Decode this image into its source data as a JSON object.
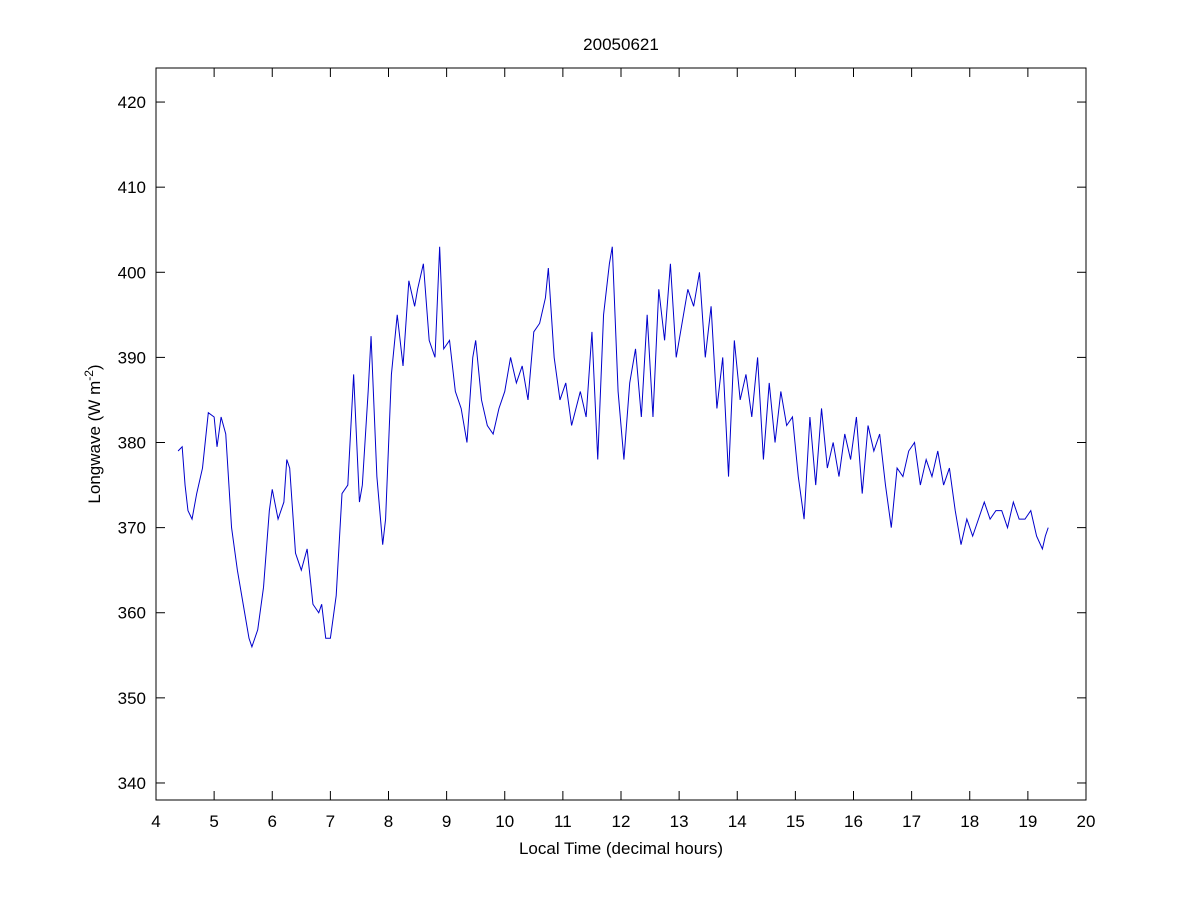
{
  "chart_data": {
    "type": "line",
    "title": "20050621",
    "xlabel": "Local Time (decimal hours)",
    "ylabel": {
      "text": "Longwave (W m",
      "superscript": "-2",
      "suffix": ")"
    },
    "xlim": [
      4,
      20
    ],
    "xticks": [
      4,
      5,
      6,
      7,
      8,
      9,
      10,
      11,
      12,
      13,
      14,
      15,
      16,
      17,
      18,
      19,
      20
    ],
    "ylim": [
      338,
      424
    ],
    "yticks": [
      340,
      350,
      360,
      370,
      380,
      390,
      400,
      410,
      420
    ],
    "grid": false,
    "series": [
      {
        "color": "#0000cc",
        "x": [
          4.38,
          4.45,
          4.5,
          4.55,
          4.62,
          4.7,
          4.8,
          4.9,
          5.0,
          5.05,
          5.12,
          5.2,
          5.3,
          5.4,
          5.5,
          5.6,
          5.65,
          5.75,
          5.85,
          5.95,
          6.0,
          6.1,
          6.2,
          6.25,
          6.3,
          6.4,
          6.5,
          6.6,
          6.7,
          6.8,
          6.85,
          6.92,
          7.0,
          7.1,
          7.2,
          7.3,
          7.4,
          7.5,
          7.55,
          7.65,
          7.7,
          7.8,
          7.9,
          7.95,
          8.05,
          8.15,
          8.25,
          8.35,
          8.45,
          8.5,
          8.6,
          8.7,
          8.8,
          8.88,
          8.95,
          9.05,
          9.15,
          9.25,
          9.35,
          9.45,
          9.5,
          9.6,
          9.7,
          9.8,
          9.9,
          10.0,
          10.1,
          10.2,
          10.3,
          10.4,
          10.5,
          10.6,
          10.7,
          10.75,
          10.85,
          10.95,
          11.05,
          11.15,
          11.3,
          11.4,
          11.5,
          11.6,
          11.7,
          11.8,
          11.85,
          11.95,
          12.05,
          12.15,
          12.25,
          12.35,
          12.45,
          12.55,
          12.65,
          12.75,
          12.85,
          12.95,
          13.05,
          13.15,
          13.25,
          13.35,
          13.45,
          13.55,
          13.65,
          13.75,
          13.85,
          13.95,
          14.05,
          14.15,
          14.25,
          14.35,
          14.45,
          14.55,
          14.65,
          14.75,
          14.85,
          14.95,
          15.05,
          15.15,
          15.25,
          15.35,
          15.45,
          15.55,
          15.65,
          15.75,
          15.85,
          15.95,
          16.05,
          16.15,
          16.25,
          16.35,
          16.45,
          16.55,
          16.65,
          16.75,
          16.85,
          16.95,
          17.05,
          17.15,
          17.25,
          17.35,
          17.45,
          17.55,
          17.65,
          17.75,
          17.85,
          17.95,
          18.05,
          18.15,
          18.25,
          18.35,
          18.45,
          18.55,
          18.65,
          18.75,
          18.85,
          18.95,
          19.05,
          19.15,
          19.25,
          19.3,
          19.35
        ],
        "values": [
          379,
          379.5,
          375,
          372,
          371,
          374,
          377,
          383.5,
          383,
          379.5,
          383,
          381,
          370,
          365,
          361,
          357,
          356,
          358,
          363,
          372,
          374.5,
          371,
          373,
          378,
          377,
          367,
          365,
          367.5,
          361,
          360,
          361,
          357,
          357,
          362,
          374,
          375,
          388,
          373,
          375,
          386,
          392.5,
          376,
          368,
          371,
          388,
          395,
          389,
          399,
          396,
          398,
          401,
          392,
          390,
          403,
          391,
          392,
          386,
          384,
          380,
          390,
          392,
          385,
          382,
          381,
          384,
          386,
          390,
          387,
          389,
          385,
          393,
          394,
          397,
          400.5,
          390,
          385,
          387,
          382,
          386,
          383,
          393,
          378,
          395,
          401,
          403,
          386,
          378,
          387,
          391,
          383,
          395,
          383,
          398,
          392,
          401,
          390,
          394,
          398,
          396,
          400,
          390,
          396,
          384,
          390,
          376,
          392,
          385,
          388,
          383,
          390,
          378,
          387,
          380,
          386,
          382,
          383,
          376,
          371,
          383,
          375,
          384,
          377,
          380,
          376,
          381,
          378,
          383,
          374,
          382,
          379,
          381,
          375,
          370,
          377,
          376,
          379,
          380,
          375,
          378,
          376,
          379,
          375,
          377,
          372,
          368,
          371,
          369,
          371,
          373,
          371,
          372,
          372,
          370,
          373,
          371,
          371,
          372,
          369,
          367.5,
          369,
          370
        ]
      }
    ]
  }
}
